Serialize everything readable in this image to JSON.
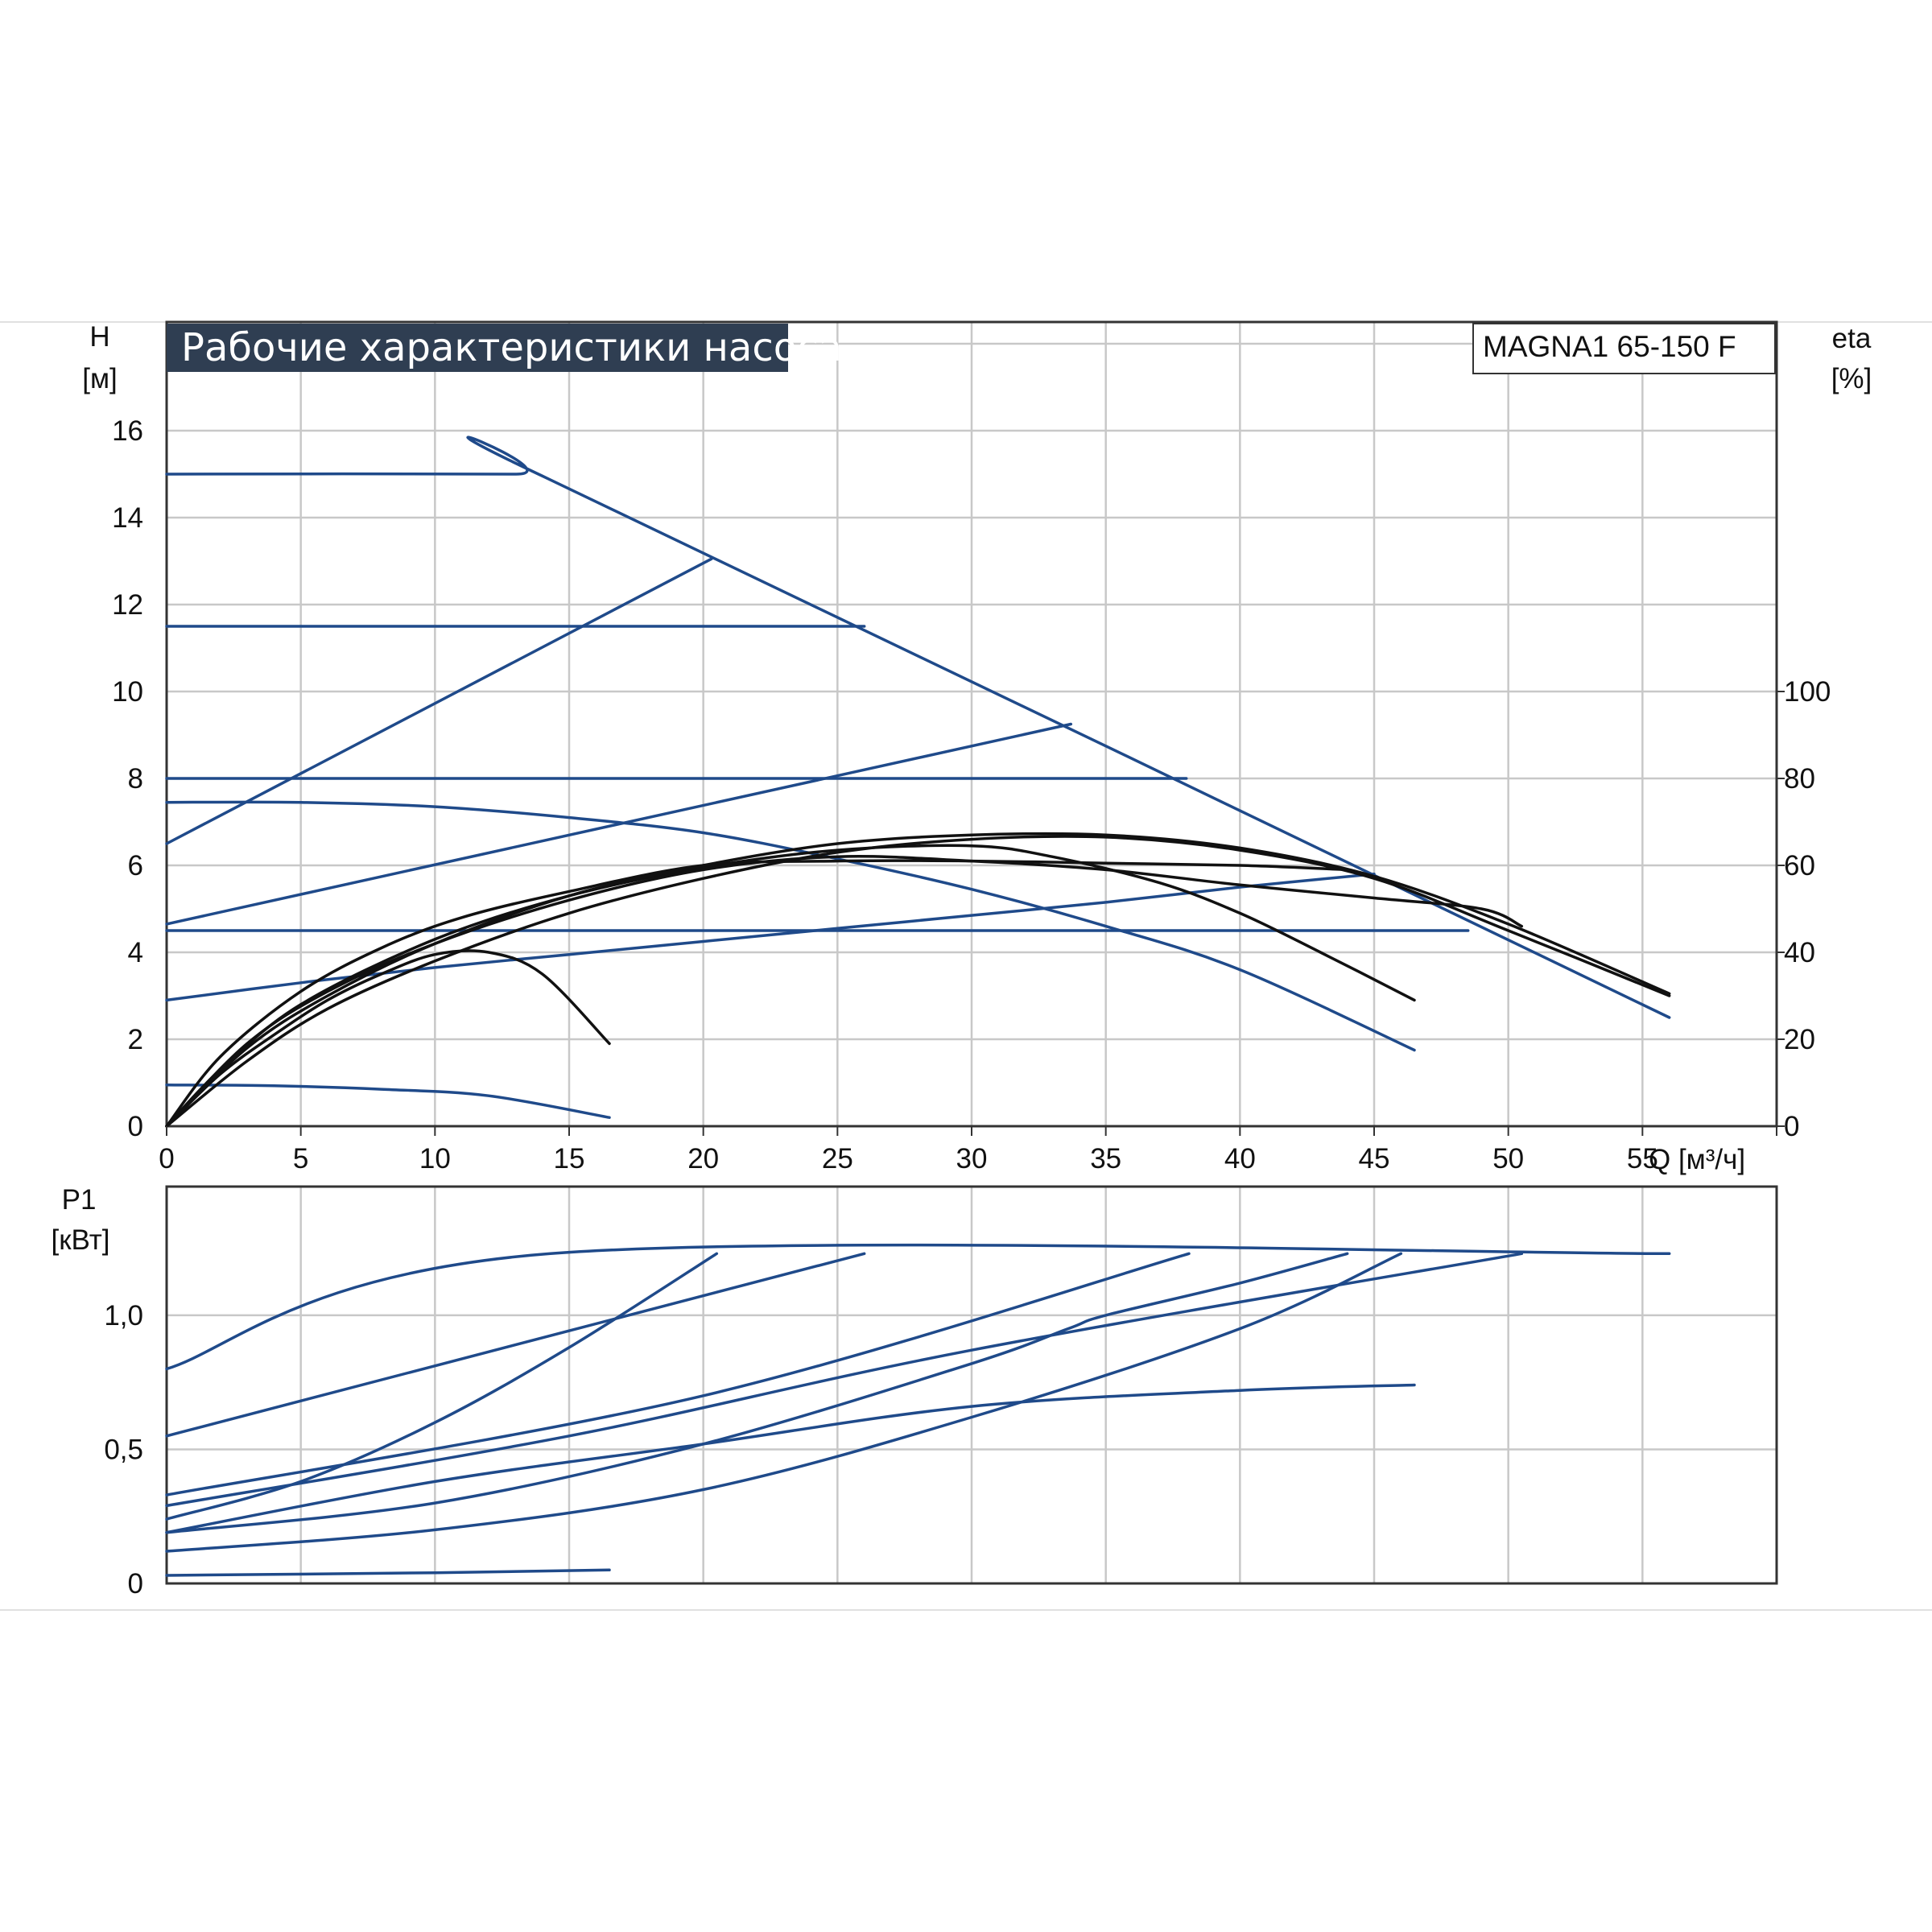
{
  "colors": {
    "blue": "#1f4a8a",
    "black": "#111111",
    "grid": "#c8c8c8",
    "title_bg": "#2f3e52",
    "title_text": "#ffffff"
  },
  "title": "Рабочие характеристики насоса",
  "model": "MAGNA1 65-150 F",
  "chart_data": [
    {
      "type": "line",
      "panel": "head",
      "title": "Рабочие характеристики насоса",
      "ylabel": "H",
      "yunit": "[м]",
      "y2label": "eta",
      "y2unit": "[%]",
      "xlabel": "Q [м³/ч]",
      "xlim": [
        0,
        60
      ],
      "ylim": [
        0,
        18.5
      ],
      "y2lim": [
        0,
        185
      ],
      "xticks": [
        "0",
        "5",
        "10",
        "15",
        "20",
        "25",
        "30",
        "35",
        "40",
        "45",
        "50",
        "55"
      ],
      "xtick_values": [
        0,
        5,
        10,
        15,
        20,
        25,
        30,
        35,
        40,
        45,
        50,
        55
      ],
      "yticks": [
        "0",
        "2",
        "4",
        "6",
        "8",
        "10",
        "12",
        "14",
        "16"
      ],
      "ytick_values": [
        0,
        2,
        4,
        6,
        8,
        10,
        12,
        14,
        16
      ],
      "y2ticks": [
        "0",
        "20",
        "40",
        "60",
        "80",
        "100"
      ],
      "y2tick_values": [
        0,
        20,
        40,
        60,
        80,
        100
      ],
      "grid": true,
      "series": [
        {
          "color": "blue",
          "points": [
            [
              0,
              15
            ],
            [
              13,
              15
            ],
            [
              14.2,
              14.9
            ],
            [
              56,
              2.5
            ]
          ]
        },
        {
          "color": "blue",
          "points": [
            [
              0,
              11.5
            ],
            [
              26,
              11.5
            ]
          ]
        },
        {
          "color": "blue",
          "points": [
            [
              0,
              8
            ],
            [
              38,
              8
            ]
          ]
        },
        {
          "color": "blue",
          "points": [
            [
              0,
              4.5
            ],
            [
              48.5,
              4.5
            ]
          ]
        },
        {
          "color": "blue",
          "points": [
            [
              0,
              6.5
            ],
            [
              20.3,
              13.05
            ]
          ]
        },
        {
          "color": "blue",
          "points": [
            [
              0,
              4.65
            ],
            [
              33.7,
              9.25
            ]
          ]
        },
        {
          "color": "blue",
          "points": [
            [
              0,
              2.9
            ],
            [
              5,
              3.3
            ],
            [
              10,
              3.65
            ],
            [
              15,
              3.95
            ],
            [
              20,
              4.25
            ],
            [
              25,
              4.55
            ],
            [
              30,
              4.85
            ],
            [
              35,
              5.15
            ],
            [
              40,
              5.5
            ],
            [
              45,
              5.8
            ]
          ]
        },
        {
          "color": "blue",
          "points": [
            [
              0,
              7.45
            ],
            [
              5,
              7.45
            ],
            [
              10,
              7.35
            ],
            [
              15,
              7.1
            ],
            [
              20,
              6.75
            ],
            [
              25,
              6.15
            ],
            [
              30,
              5.45
            ],
            [
              35,
              4.6
            ],
            [
              40,
              3.6
            ],
            [
              46.5,
              1.75
            ]
          ]
        },
        {
          "color": "blue",
          "points": [
            [
              0,
              0.95
            ],
            [
              4,
              0.93
            ],
            [
              8,
              0.85
            ],
            [
              12,
              0.7
            ],
            [
              16.5,
              0.2
            ]
          ]
        },
        {
          "color": "black",
          "points": [
            [
              0,
              0
            ],
            [
              2,
              1.2
            ],
            [
              4,
              2.1
            ],
            [
              6,
              2.9
            ],
            [
              8,
              3.5
            ],
            [
              10,
              3.95
            ],
            [
              12,
              4.0
            ],
            [
              14,
              3.5
            ],
            [
              16.5,
              1.9
            ]
          ]
        },
        {
          "color": "black",
          "points": [
            [
              0,
              0
            ],
            [
              2,
              1.6
            ],
            [
              5,
              3.1
            ],
            [
              8,
              4.1
            ],
            [
              11,
              4.8
            ],
            [
              15,
              5.4
            ],
            [
              20,
              6.0
            ],
            [
              25,
              6.1
            ],
            [
              30,
              6.1
            ],
            [
              35,
              6.05
            ],
            [
              40,
              6.0
            ],
            [
              44,
              5.9
            ]
          ]
        },
        {
          "color": "black",
          "points": [
            [
              0,
              0
            ],
            [
              2,
              1.3
            ],
            [
              5,
              2.8
            ],
            [
              10,
              4.3
            ],
            [
              15,
              5.3
            ],
            [
              20,
              5.95
            ],
            [
              25,
              6.35
            ],
            [
              30,
              6.45
            ],
            [
              33,
              6.2
            ],
            [
              37,
              5.6
            ],
            [
              40,
              4.9
            ],
            [
              43,
              4.0
            ],
            [
              46.5,
              2.9
            ]
          ]
        },
        {
          "color": "black",
          "points": [
            [
              0,
              0
            ],
            [
              3,
              1.9
            ],
            [
              6,
              3.1
            ],
            [
              10,
              4.2
            ],
            [
              15,
              5.2
            ],
            [
              20,
              5.9
            ],
            [
              25,
              6.2
            ],
            [
              30,
              6.1
            ],
            [
              35,
              5.9
            ],
            [
              40,
              5.55
            ],
            [
              45,
              5.25
            ],
            [
              49,
              5.0
            ],
            [
              50.5,
              4.6
            ]
          ]
        },
        {
          "color": "black",
          "points": [
            [
              0,
              0
            ],
            [
              3,
              1.5
            ],
            [
              6,
              2.7
            ],
            [
              10,
              3.8
            ],
            [
              15,
              4.9
            ],
            [
              20,
              5.7
            ],
            [
              25,
              6.3
            ],
            [
              30,
              6.6
            ],
            [
              35,
              6.65
            ],
            [
              40,
              6.35
            ],
            [
              45,
              5.7
            ],
            [
              50,
              4.5
            ],
            [
              56,
              3.0
            ]
          ]
        },
        {
          "color": "black",
          "points": [
            [
              0,
              0
            ],
            [
              3,
              1.8
            ],
            [
              6,
              3.0
            ],
            [
              10,
              4.2
            ],
            [
              15,
              5.3
            ],
            [
              20,
              6.0
            ],
            [
              25,
              6.5
            ],
            [
              30,
              6.7
            ],
            [
              35,
              6.7
            ],
            [
              40,
              6.4
            ],
            [
              45,
              5.75
            ],
            [
              50,
              4.65
            ],
            [
              56,
              3.05
            ]
          ]
        }
      ]
    },
    {
      "type": "line",
      "panel": "power",
      "ylabel": "P1",
      "yunit": "[кВт]",
      "xlim": [
        0,
        61
      ],
      "ylim": [
        0,
        1.48
      ],
      "yticks": [
        "0",
        "0,5",
        "1,0"
      ],
      "ytick_values": [
        0,
        0.5,
        1.0
      ],
      "grid": true,
      "series": [
        {
          "color": "blue",
          "points": [
            [
              0,
              0.8
            ],
            [
              14.3,
              1.23
            ],
            [
              56,
              1.23
            ]
          ]
        },
        {
          "color": "blue",
          "points": [
            [
              0,
              0.55
            ],
            [
              26,
              1.23
            ]
          ]
        },
        {
          "color": "blue",
          "points": [
            [
              0,
              0.33
            ],
            [
              20,
              0.7
            ],
            [
              38.1,
              1.23
            ]
          ]
        },
        {
          "color": "blue",
          "points": [
            [
              0,
              0.29
            ],
            [
              15,
              0.55
            ],
            [
              30,
              0.87
            ],
            [
              50.5,
              1.23
            ]
          ]
        },
        {
          "color": "blue",
          "points": [
            [
              0,
              0.24
            ],
            [
              5,
              0.38
            ],
            [
              10,
              0.6
            ],
            [
              15,
              0.88
            ],
            [
              20.5,
              1.23
            ]
          ]
        },
        {
          "color": "blue",
          "points": [
            [
              0,
              0.19
            ],
            [
              10,
              0.3
            ],
            [
              20,
              0.52
            ],
            [
              30,
              0.82
            ],
            [
              33.6,
              0.95
            ],
            [
              35,
              1.0
            ],
            [
              40,
              1.12
            ],
            [
              44,
              1.23
            ]
          ]
        },
        {
          "color": "blue",
          "points": [
            [
              0,
              0.19
            ],
            [
              10,
              0.38
            ],
            [
              20,
              0.52
            ],
            [
              30,
              0.66
            ],
            [
              40,
              0.72
            ],
            [
              46.5,
              0.74
            ]
          ]
        },
        {
          "color": "blue",
          "points": [
            [
              0,
              0.12
            ],
            [
              10,
              0.2
            ],
            [
              20,
              0.35
            ],
            [
              30,
              0.62
            ],
            [
              40,
              0.95
            ],
            [
              46,
              1.23
            ]
          ]
        },
        {
          "color": "blue",
          "points": [
            [
              0,
              0.03
            ],
            [
              10,
              0.04
            ],
            [
              16.5,
              0.05
            ]
          ]
        }
      ]
    }
  ]
}
